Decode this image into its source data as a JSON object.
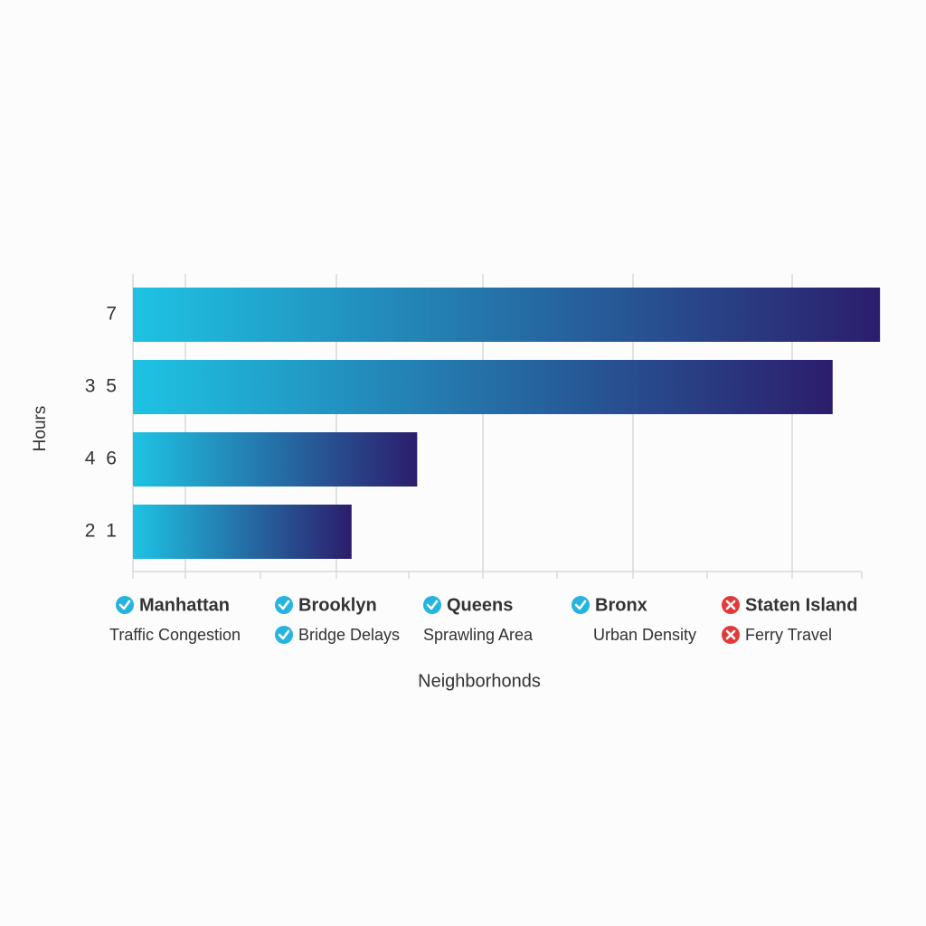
{
  "chart_data": {
    "type": "bar",
    "orientation": "horizontal",
    "ylabel": "Hours",
    "xlabel": "Neighborhonds",
    "categories": [
      "7",
      "3 5",
      "4 6",
      "2 1"
    ],
    "values": [
      10.25,
      9.6,
      3.9,
      3.0
    ],
    "xlim": [
      0,
      10
    ],
    "gradient": [
      "#1ec3e3",
      "#2c1d6c"
    ],
    "grid": true,
    "legend": [
      {
        "label": "Manhattan",
        "icon": "check"
      },
      {
        "label": "Brooklyn",
        "icon": "check"
      },
      {
        "label": "Queens",
        "icon": "check"
      },
      {
        "label": "Bronx",
        "icon": "check"
      },
      {
        "label": "Staten Island",
        "icon": "cross"
      }
    ],
    "notes": [
      {
        "label": "Traffic Congestion"
      },
      {
        "label": "Bridge Delays",
        "icon": "check"
      },
      {
        "label": "Sprawling Area"
      },
      {
        "label": "Urban Density"
      },
      {
        "label": "Ferry Travel",
        "icon": "cross"
      }
    ]
  }
}
